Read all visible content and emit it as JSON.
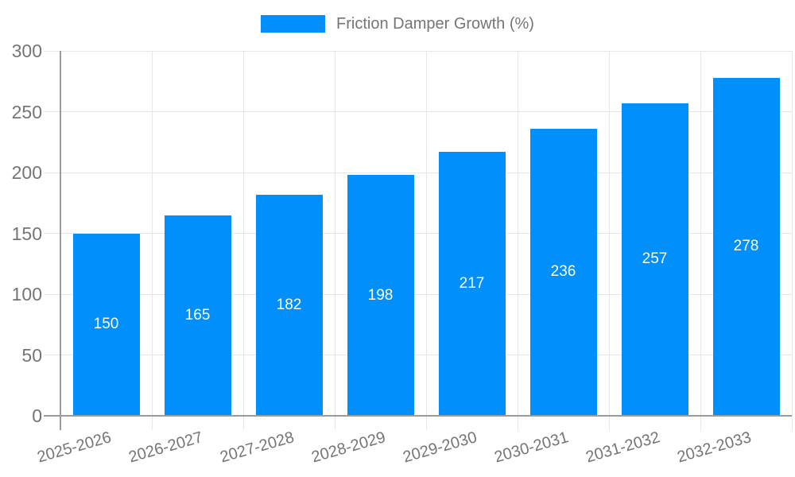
{
  "legend": {
    "label": "Friction Damper Growth (%)"
  },
  "chart_data": {
    "type": "bar",
    "title": "Friction Damper Growth (%)",
    "series_name": "Friction Damper Growth (%)",
    "categories": [
      "2025-2026",
      "2026-2027",
      "2027-2028",
      "2028-2029",
      "2029-2030",
      "2030-2031",
      "2031-2032",
      "2032-2033"
    ],
    "values": [
      150,
      165,
      182,
      198,
      217,
      236,
      257,
      278
    ],
    "value_labels": [
      "150",
      "165",
      "182",
      "198",
      "217",
      "236",
      "257",
      "278"
    ],
    "xlabel": "",
    "ylabel": "",
    "ylim": [
      0,
      300
    ],
    "yticks": [
      0,
      50,
      100,
      150,
      200,
      250,
      300
    ],
    "grid": true,
    "legend_position": "top",
    "colors": {
      "bar": "#008FFB",
      "value_label": "#FFFFFF",
      "axis_text": "#757575",
      "gridline": "#E7E7E7",
      "axis_line": "#9B9B9B",
      "background": "#FFFFFF"
    }
  }
}
